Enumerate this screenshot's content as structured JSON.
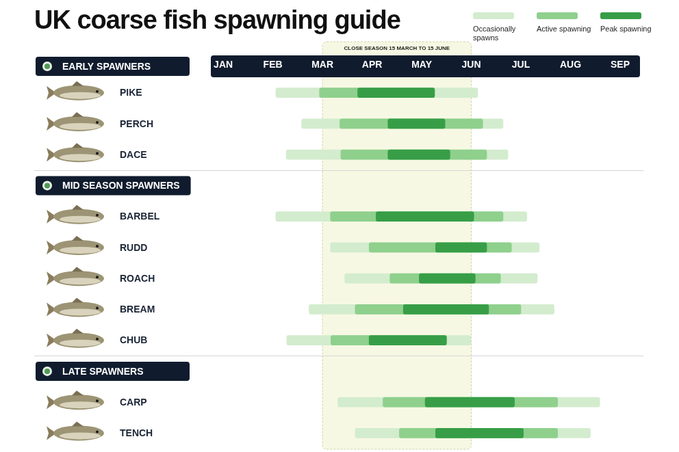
{
  "chart_data": {
    "type": "bar",
    "orientation": "horizontal",
    "title": "UK coarse fish spawning guide",
    "categories": [
      "PIKE",
      "PERCH",
      "DACE",
      "BARBEL",
      "RUDD",
      "ROACH",
      "BREAM",
      "CHUB",
      "CARP",
      "TENCH"
    ],
    "groups": [
      {
        "name": "EARLY SPAWNERS",
        "categories": [
          "PIKE",
          "PERCH",
          "DACE"
        ]
      },
      {
        "name": "MID SEASON SPAWNERS",
        "categories": [
          "BARBEL",
          "RUDD",
          "ROACH",
          "BREAM",
          "CHUB"
        ]
      },
      {
        "name": "LATE SPAWNERS",
        "categories": [
          "CARP",
          "TENCH"
        ]
      }
    ],
    "series": [
      {
        "name": "Occasionally spawns",
        "color": "#d3ecce",
        "values": [
          [
            2.56,
            6.63
          ],
          [
            3.08,
            7.14
          ],
          [
            2.77,
            7.24
          ],
          [
            2.56,
            7.62
          ],
          [
            3.66,
            7.87
          ],
          [
            3.95,
            7.83
          ],
          [
            3.23,
            8.17
          ],
          [
            2.78,
            6.49
          ],
          [
            3.81,
            9.09
          ],
          [
            4.16,
            8.9
          ]
        ]
      },
      {
        "name": "Active spawning",
        "color": "#8fd08d",
        "values": [
          [
            3.44,
            5.76
          ],
          [
            3.85,
            6.73
          ],
          [
            3.87,
            6.81
          ],
          [
            3.66,
            7.14
          ],
          [
            4.44,
            7.31
          ],
          [
            4.86,
            7.09
          ],
          [
            4.16,
            7.5
          ],
          [
            3.67,
            6.0
          ],
          [
            4.72,
            8.24
          ],
          [
            5.05,
            8.24
          ]
        ]
      },
      {
        "name": "Peak spawning",
        "color": "#379e47",
        "values": [
          [
            4.21,
            5.76
          ],
          [
            4.82,
            5.97
          ],
          [
            4.82,
            6.07
          ],
          [
            4.58,
            6.55
          ],
          [
            5.78,
            6.81
          ],
          [
            5.45,
            6.58
          ],
          [
            5.13,
            6.85
          ],
          [
            4.44,
            6.0
          ],
          [
            5.57,
            7.37
          ],
          [
            5.78,
            7.55
          ]
        ]
      }
    ],
    "annotations": [
      {
        "text": "CLOSE SEASON 15 MARCH TO 15 JUNE",
        "x": [
          3.5,
          6.5
        ]
      }
    ],
    "xlim": [
      1.25,
      9.9
    ],
    "xticks": [
      {
        "value": 1.5,
        "label": "JAN"
      },
      {
        "value": 2.5,
        "label": "FEB"
      },
      {
        "value": 3.5,
        "label": "MAR"
      },
      {
        "value": 4.5,
        "label": "APR"
      },
      {
        "value": 5.5,
        "label": "MAY"
      },
      {
        "value": 6.5,
        "label": "JUN"
      },
      {
        "value": 7.5,
        "label": "JUL"
      },
      {
        "value": 8.5,
        "label": "AUG"
      },
      {
        "value": 9.5,
        "label": "SEP"
      }
    ],
    "grid": false,
    "legend": "top right"
  }
}
